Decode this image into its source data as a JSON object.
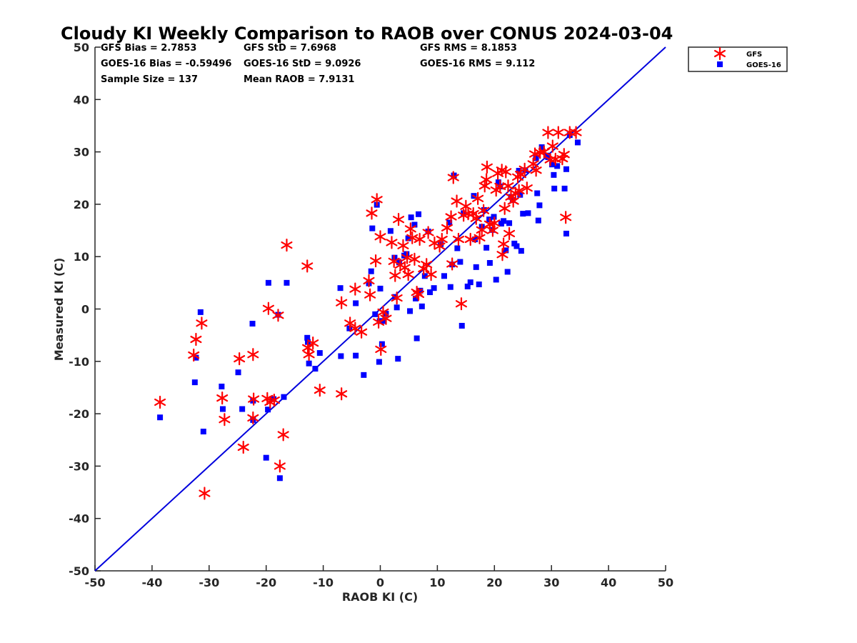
{
  "chart_data": {
    "type": "scatter",
    "title": "Cloudy KI Weekly Comparison to RAOB over CONUS 2024-03-04",
    "xlabel": "RAOB KI (C)",
    "ylabel": "Measured KI (C)",
    "xlim": [
      -50,
      50
    ],
    "ylim": [
      -50,
      50
    ],
    "xticks": [
      -50,
      -40,
      -30,
      -20,
      -10,
      0,
      10,
      20,
      30,
      40,
      50
    ],
    "yticks": [
      -50,
      -40,
      -30,
      -20,
      -10,
      0,
      10,
      20,
      30,
      40,
      50
    ],
    "grid": false,
    "legend_position": "top-right outside",
    "reference_line": {
      "x": [
        -50,
        50
      ],
      "y": [
        -50,
        50
      ],
      "color": "#0000dd"
    },
    "stats": [
      {
        "text": "GFS Bias = 2.7853"
      },
      {
        "text": "GFS StD = 7.6968"
      },
      {
        "text": "GFS RMS = 8.1853"
      },
      {
        "text": "GOES-16 Bias = -0.59496"
      },
      {
        "text": "GOES-16 StD = 9.0926"
      },
      {
        "text": "GOES-16 RMS = 9.112"
      },
      {
        "text": "Sample Size = 137"
      },
      {
        "text": "Mean RAOB = 7.9131"
      }
    ],
    "series": [
      {
        "name": "GFS",
        "color": "#ff0000",
        "marker": "asterisk",
        "points": [
          [
            -38.6,
            -17.8
          ],
          [
            -32.7,
            -8.8
          ],
          [
            -32.3,
            -5.8
          ],
          [
            -31.3,
            -2.7
          ],
          [
            -30.8,
            -35.2
          ],
          [
            -27.7,
            -17
          ],
          [
            -27.3,
            -21.1
          ],
          [
            -24.7,
            -9.5
          ],
          [
            -24,
            -26.4
          ],
          [
            -22.3,
            -8.7
          ],
          [
            -22.2,
            -17.2
          ],
          [
            -22.3,
            -20.8
          ],
          [
            -19.8,
            -17.1
          ],
          [
            -19.6,
            0.1
          ],
          [
            -19.3,
            -17.8
          ],
          [
            -18.6,
            -17.4
          ],
          [
            -17.9,
            -1.2
          ],
          [
            -17.6,
            -30
          ],
          [
            -17,
            -24
          ],
          [
            -16.4,
            12.2
          ],
          [
            -12.8,
            8.2
          ],
          [
            -12.7,
            -7.4
          ],
          [
            -12.5,
            -8.7
          ],
          [
            -11.8,
            -6.5
          ],
          [
            -10.6,
            -15.5
          ],
          [
            -6.8,
            1.2
          ],
          [
            -6.8,
            -16.2
          ],
          [
            -5.3,
            -2.7
          ],
          [
            -4.4,
            3.8
          ],
          [
            -4.4,
            -3.7
          ],
          [
            -3.3,
            -4.4
          ],
          [
            -2,
            5.4
          ],
          [
            -1.8,
            2.7
          ],
          [
            -1.5,
            18.3
          ],
          [
            -0.8,
            9.2
          ],
          [
            -0.6,
            20.9
          ],
          [
            -0.3,
            -2.5
          ],
          [
            0,
            13.8
          ],
          [
            0.1,
            -7.7
          ],
          [
            0.5,
            -0.6
          ],
          [
            1,
            -1.8
          ],
          [
            2,
            12.7
          ],
          [
            2.4,
            9.1
          ],
          [
            2.6,
            6.4
          ],
          [
            2.9,
            2.1
          ],
          [
            3.2,
            17.1
          ],
          [
            3.5,
            8.4
          ],
          [
            4,
            12.1
          ],
          [
            4.3,
            7.9
          ],
          [
            4.7,
            9.8
          ],
          [
            4.9,
            6.6
          ],
          [
            5.3,
            15.3
          ],
          [
            5.6,
            13.6
          ],
          [
            6,
            9.5
          ],
          [
            6.4,
            3.2
          ],
          [
            6.7,
            2.8
          ],
          [
            6.9,
            13.3
          ],
          [
            7.6,
            7.7
          ],
          [
            8.1,
            8.5
          ],
          [
            8.4,
            14.6
          ],
          [
            8.9,
            6.6
          ],
          [
            9.5,
            12.6
          ],
          [
            10.4,
            12
          ],
          [
            10.8,
            13.3
          ],
          [
            11.7,
            15.5
          ],
          [
            12.4,
            17.6
          ],
          [
            12.6,
            8.6
          ],
          [
            12.8,
            25.1
          ],
          [
            13.4,
            20.6
          ],
          [
            13.7,
            13.3
          ],
          [
            14.2,
            1
          ],
          [
            14.6,
            17.9
          ],
          [
            15,
            19.6
          ],
          [
            15.4,
            18.2
          ],
          [
            15.8,
            13.3
          ],
          [
            16.3,
            18.2
          ],
          [
            16.8,
            17.3
          ],
          [
            17.1,
            21.1
          ],
          [
            17.4,
            13.6
          ],
          [
            17.8,
            15.1
          ],
          [
            18.1,
            18.8
          ],
          [
            18.3,
            23.5
          ],
          [
            18.6,
            24.7
          ],
          [
            18.7,
            27.1
          ],
          [
            19.2,
            16.2
          ],
          [
            19.7,
            15
          ],
          [
            20,
            16.4
          ],
          [
            20.3,
            22.7
          ],
          [
            20.6,
            25.9
          ],
          [
            21,
            23.4
          ],
          [
            21.3,
            26.5
          ],
          [
            21.4,
            10.4
          ],
          [
            21.6,
            12.4
          ],
          [
            21.8,
            19.2
          ],
          [
            22,
            26.2
          ],
          [
            22.4,
            23.5
          ],
          [
            22.6,
            14.4
          ],
          [
            22.9,
            21.4
          ],
          [
            23.3,
            20.6
          ],
          [
            23.7,
            22.1
          ],
          [
            24.1,
            25.2
          ],
          [
            24.3,
            22.6
          ],
          [
            24.6,
            25.7
          ],
          [
            25.3,
            26.7
          ],
          [
            25.7,
            23.1
          ],
          [
            26.8,
            27.7
          ],
          [
            27.1,
            29.6
          ],
          [
            27.3,
            26.5
          ],
          [
            28,
            29.9
          ],
          [
            28.7,
            30
          ],
          [
            29.4,
            33.7
          ],
          [
            29.8,
            28.5
          ],
          [
            30.2,
            31.1
          ],
          [
            30.7,
            28.6
          ],
          [
            31.2,
            33.7
          ],
          [
            31.9,
            28.7
          ],
          [
            32.2,
            29.5
          ],
          [
            32.5,
            17.5
          ],
          [
            33.2,
            33.7
          ],
          [
            34.3,
            33.7
          ]
        ]
      },
      {
        "name": "GOES-16",
        "color": "#0000ff",
        "marker": "square",
        "points": [
          [
            -38.6,
            -20.7
          ],
          [
            -32.5,
            -14
          ],
          [
            -32.3,
            -9.3
          ],
          [
            -31.5,
            -0.6
          ],
          [
            -31,
            -23.4
          ],
          [
            -27.8,
            -14.8
          ],
          [
            -27.6,
            -19.1
          ],
          [
            -24.9,
            -12.1
          ],
          [
            -24.2,
            -19.1
          ],
          [
            -22.4,
            -2.8
          ],
          [
            -22.3,
            -21.2
          ],
          [
            -22.3,
            -17.5
          ],
          [
            -20,
            -28.4
          ],
          [
            -19.7,
            -19.2
          ],
          [
            -19.6,
            5
          ],
          [
            -18.7,
            -17.2
          ],
          [
            -17.9,
            -1.1
          ],
          [
            -17.6,
            -32.3
          ],
          [
            -16.9,
            -16.8
          ],
          [
            -16.4,
            5
          ],
          [
            -12.8,
            -5.5
          ],
          [
            -12.7,
            -6.3
          ],
          [
            -12.5,
            -10.4
          ],
          [
            -11.4,
            -11.4
          ],
          [
            -10.6,
            -8.4
          ],
          [
            -7,
            4
          ],
          [
            -6.9,
            -9
          ],
          [
            -5.4,
            -3.7
          ],
          [
            -4.3,
            -8.9
          ],
          [
            -4.3,
            1.1
          ],
          [
            -2.9,
            -12.6
          ],
          [
            -2,
            4.9
          ],
          [
            -1.6,
            7.2
          ],
          [
            -1.4,
            15.4
          ],
          [
            -0.9,
            -1
          ],
          [
            -0.6,
            19.9
          ],
          [
            -0.1,
            -2.3
          ],
          [
            0,
            3.9
          ],
          [
            -0.2,
            -10.1
          ],
          [
            0.3,
            -6.7
          ],
          [
            0.4,
            -2.3
          ],
          [
            1,
            -0.9
          ],
          [
            1.8,
            14.9
          ],
          [
            2.5,
            9.8
          ],
          [
            2.6,
            2.3
          ],
          [
            2.9,
            0.3
          ],
          [
            3.1,
            -9.5
          ],
          [
            3.3,
            8.9
          ],
          [
            4.2,
            10.2
          ],
          [
            4.6,
            10.5
          ],
          [
            4.9,
            13.5
          ],
          [
            5.2,
            -0.4
          ],
          [
            5.4,
            17.5
          ],
          [
            6,
            16.1
          ],
          [
            6.2,
            2
          ],
          [
            6.4,
            -5.6
          ],
          [
            6.7,
            18.1
          ],
          [
            7,
            3.5
          ],
          [
            7.3,
            0.5
          ],
          [
            7.8,
            6.3
          ],
          [
            8.4,
            14.8
          ],
          [
            8.7,
            3.2
          ],
          [
            9.4,
            4
          ],
          [
            10.6,
            12.4
          ],
          [
            11.2,
            6.3
          ],
          [
            12.1,
            16.5
          ],
          [
            12.3,
            4.2
          ],
          [
            12.6,
            8.5
          ],
          [
            12.9,
            25.5
          ],
          [
            13.5,
            11.6
          ],
          [
            14,
            9
          ],
          [
            14.3,
            -3.2
          ],
          [
            14.6,
            18.3
          ],
          [
            15.3,
            4.3
          ],
          [
            15.8,
            5.1
          ],
          [
            16.4,
            21.6
          ],
          [
            16.6,
            13.3
          ],
          [
            16.8,
            8
          ],
          [
            17.3,
            4.7
          ],
          [
            17.8,
            15.7
          ],
          [
            18.2,
            18.9
          ],
          [
            18.6,
            11.7
          ],
          [
            19.1,
            17.1
          ],
          [
            19.2,
            8.8
          ],
          [
            19.6,
            15.1
          ],
          [
            19.9,
            17.6
          ],
          [
            20.3,
            5.6
          ],
          [
            20.7,
            24.2
          ],
          [
            21,
            23.4
          ],
          [
            21.2,
            16.3
          ],
          [
            21.6,
            16.8
          ],
          [
            22,
            11.2
          ],
          [
            22.3,
            7.1
          ],
          [
            22.6,
            16.4
          ],
          [
            22.9,
            21.4
          ],
          [
            23.2,
            20.8
          ],
          [
            23.5,
            12.5
          ],
          [
            23.9,
            12
          ],
          [
            24.3,
            26.4
          ],
          [
            24.5,
            21.8
          ],
          [
            24.7,
            11.1
          ],
          [
            25,
            18.2
          ],
          [
            25.4,
            26.5
          ],
          [
            25.9,
            18.3
          ],
          [
            27.3,
            28.8
          ],
          [
            27.5,
            22.1
          ],
          [
            27.7,
            16.9
          ],
          [
            27.9,
            19.8
          ],
          [
            28.3,
            30.9
          ],
          [
            29.1,
            29.3
          ],
          [
            29.4,
            29
          ],
          [
            30.1,
            27.6
          ],
          [
            30.4,
            25.6
          ],
          [
            30.5,
            23
          ],
          [
            31,
            27.3
          ],
          [
            32.3,
            23
          ],
          [
            32.6,
            26.7
          ],
          [
            32.6,
            14.4
          ],
          [
            33.2,
            33.2
          ],
          [
            34.6,
            31.8
          ]
        ]
      }
    ]
  }
}
